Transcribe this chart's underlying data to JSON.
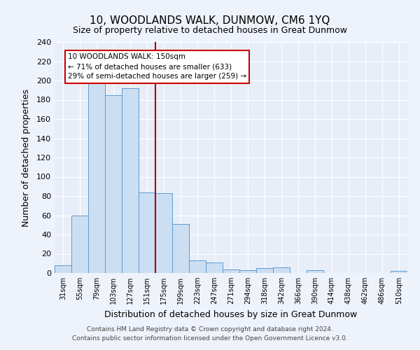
{
  "title": "10, WOODLANDS WALK, DUNMOW, CM6 1YQ",
  "subtitle": "Size of property relative to detached houses in Great Dunmow",
  "xlabel": "Distribution of detached houses by size in Great Dunmow",
  "ylabel": "Number of detached properties",
  "bar_labels": [
    "31sqm",
    "55sqm",
    "79sqm",
    "103sqm",
    "127sqm",
    "151sqm",
    "175sqm",
    "199sqm",
    "223sqm",
    "247sqm",
    "271sqm",
    "294sqm",
    "318sqm",
    "342sqm",
    "366sqm",
    "390sqm",
    "414sqm",
    "438sqm",
    "462sqm",
    "486sqm",
    "510sqm"
  ],
  "bar_values": [
    8,
    60,
    201,
    185,
    192,
    84,
    83,
    51,
    13,
    11,
    4,
    3,
    5,
    6,
    0,
    3,
    0,
    0,
    0,
    0,
    2
  ],
  "bar_color": "#ccdff2",
  "bar_edge_color": "#5b9bd5",
  "ylim": [
    0,
    240
  ],
  "yticks": [
    0,
    20,
    40,
    60,
    80,
    100,
    120,
    140,
    160,
    180,
    200,
    220,
    240
  ],
  "vline_color": "#aa0000",
  "annotation_title": "10 WOODLANDS WALK: 150sqm",
  "annotation_line1": "← 71% of detached houses are smaller (633)",
  "annotation_line2": "29% of semi-detached houses are larger (259) →",
  "annotation_box_color": "#ffffff",
  "annotation_box_edge": "#cc0000",
  "footer1": "Contains HM Land Registry data © Crown copyright and database right 2024.",
  "footer2": "Contains public sector information licensed under the Open Government Licence v3.0.",
  "bg_color": "#eef2fa",
  "grid_color": "#d8e0ec",
  "plot_bg": "#e8eef8"
}
